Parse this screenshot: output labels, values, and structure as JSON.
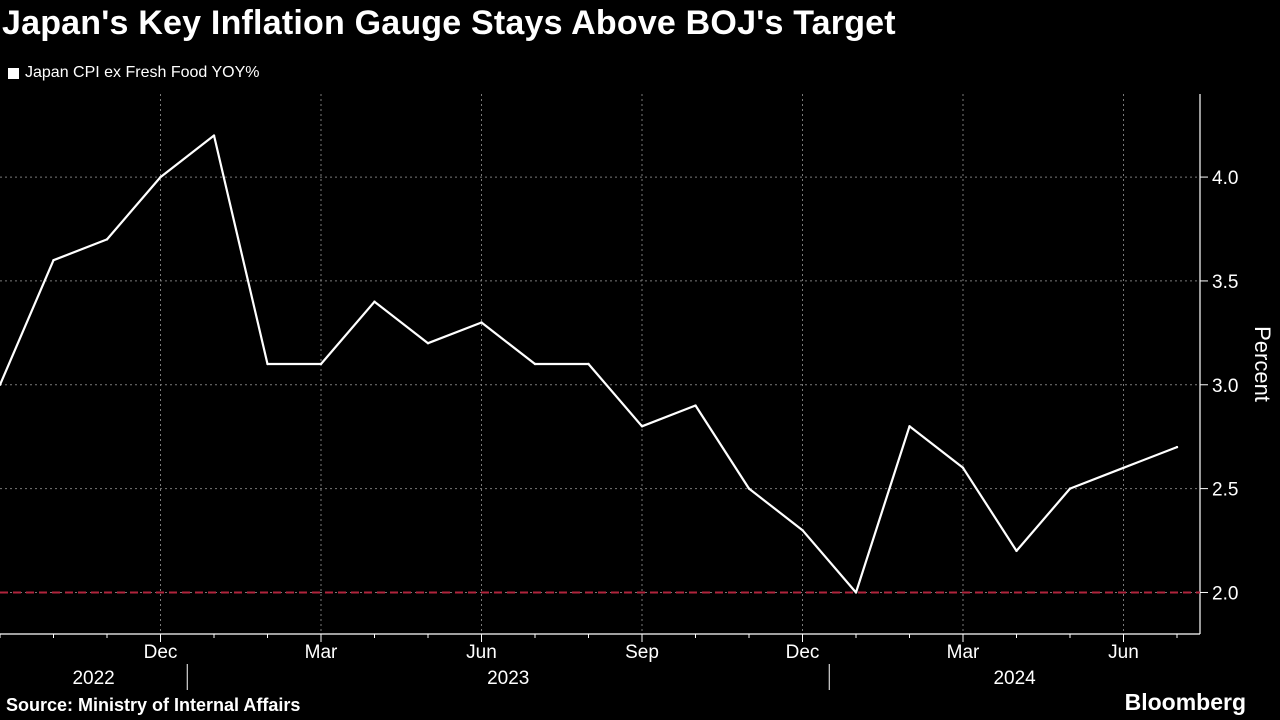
{
  "header": {
    "title": "Japan's Key Inflation Gauge Stays Above BOJ's Target",
    "legend_label": "Japan CPI ex Fresh Food YOY%"
  },
  "footer": {
    "source": "Source: Ministry of Internal Affairs",
    "brand": "Bloomberg"
  },
  "colors": {
    "background": "#000000",
    "line": "#ffffff",
    "grid": "#7a7a7a",
    "target_line": "#b0243c"
  },
  "chart_data": {
    "type": "line",
    "title": "Japan's Key Inflation Gauge Stays Above BOJ's Target",
    "ylabel": "Percent",
    "xlabel": "",
    "ylim": [
      1.8,
      4.4
    ],
    "yticks": [
      2.0,
      2.5,
      3.0,
      3.5,
      4.0
    ],
    "ytick_labels": [
      "2.0",
      "2.5",
      "3.0",
      "3.5",
      "4.0"
    ],
    "x": [
      "2022-09",
      "2022-10",
      "2022-11",
      "2022-12",
      "2023-01",
      "2023-02",
      "2023-03",
      "2023-04",
      "2023-05",
      "2023-06",
      "2023-07",
      "2023-08",
      "2023-09",
      "2023-10",
      "2023-11",
      "2023-12",
      "2024-01",
      "2024-02",
      "2024-03",
      "2024-04",
      "2024-05",
      "2024-06",
      "2024-07"
    ],
    "xticks": [
      {
        "label": "Dec",
        "month": "2022-12"
      },
      {
        "label": "Mar",
        "month": "2023-03"
      },
      {
        "label": "Jun",
        "month": "2023-06"
      },
      {
        "label": "Sep",
        "month": "2023-09"
      },
      {
        "label": "Dec",
        "month": "2023-12"
      },
      {
        "label": "Mar",
        "month": "2024-03"
      },
      {
        "label": "Jun",
        "month": "2024-06"
      }
    ],
    "year_labels": [
      "2022",
      "2023",
      "2024"
    ],
    "series": [
      {
        "name": "Japan CPI ex Fresh Food YOY%",
        "values": [
          3.0,
          3.6,
          3.7,
          4.0,
          4.2,
          3.1,
          3.1,
          3.4,
          3.2,
          3.3,
          3.1,
          3.1,
          2.8,
          2.9,
          2.5,
          2.3,
          2.0,
          2.8,
          2.6,
          2.2,
          2.5,
          2.6,
          2.7
        ]
      }
    ],
    "reference_line": {
      "value": 2.0,
      "style": "dashed"
    },
    "grid": true,
    "legend_position": "top-left"
  }
}
